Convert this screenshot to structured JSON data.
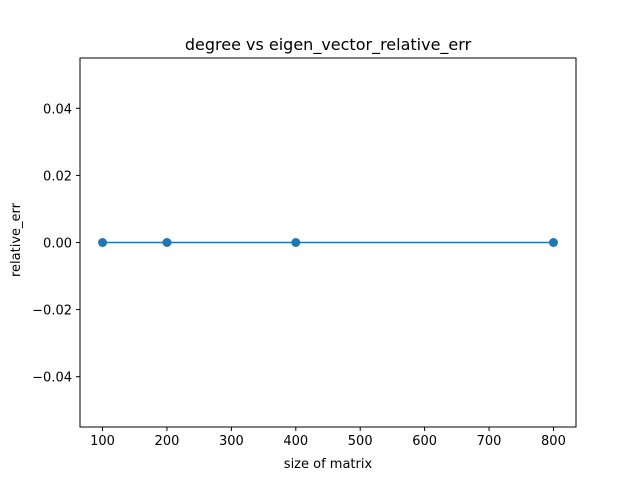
{
  "chart_data": {
    "type": "line",
    "title": "degree vs eigen_vector_relative_err",
    "xlabel": "size of matrix",
    "ylabel": "relative_err",
    "xlim": [
      65,
      835
    ],
    "ylim": [
      -0.055,
      0.055
    ],
    "xticks": [
      100,
      200,
      300,
      400,
      500,
      600,
      700,
      800
    ],
    "xtick_labels": [
      "100",
      "200",
      "300",
      "400",
      "500",
      "600",
      "700",
      "800"
    ],
    "yticks": [
      -0.04,
      -0.02,
      0.0,
      0.02,
      0.04
    ],
    "ytick_labels": [
      "−0.04",
      "−0.02",
      "0.00",
      "0.02",
      "0.04"
    ],
    "grid": false,
    "series": [
      {
        "x": [
          100,
          200,
          400,
          800
        ],
        "y": [
          0.0,
          0.0,
          0.0,
          0.0
        ],
        "color": "#1f77b4",
        "marker": "circle"
      }
    ]
  }
}
